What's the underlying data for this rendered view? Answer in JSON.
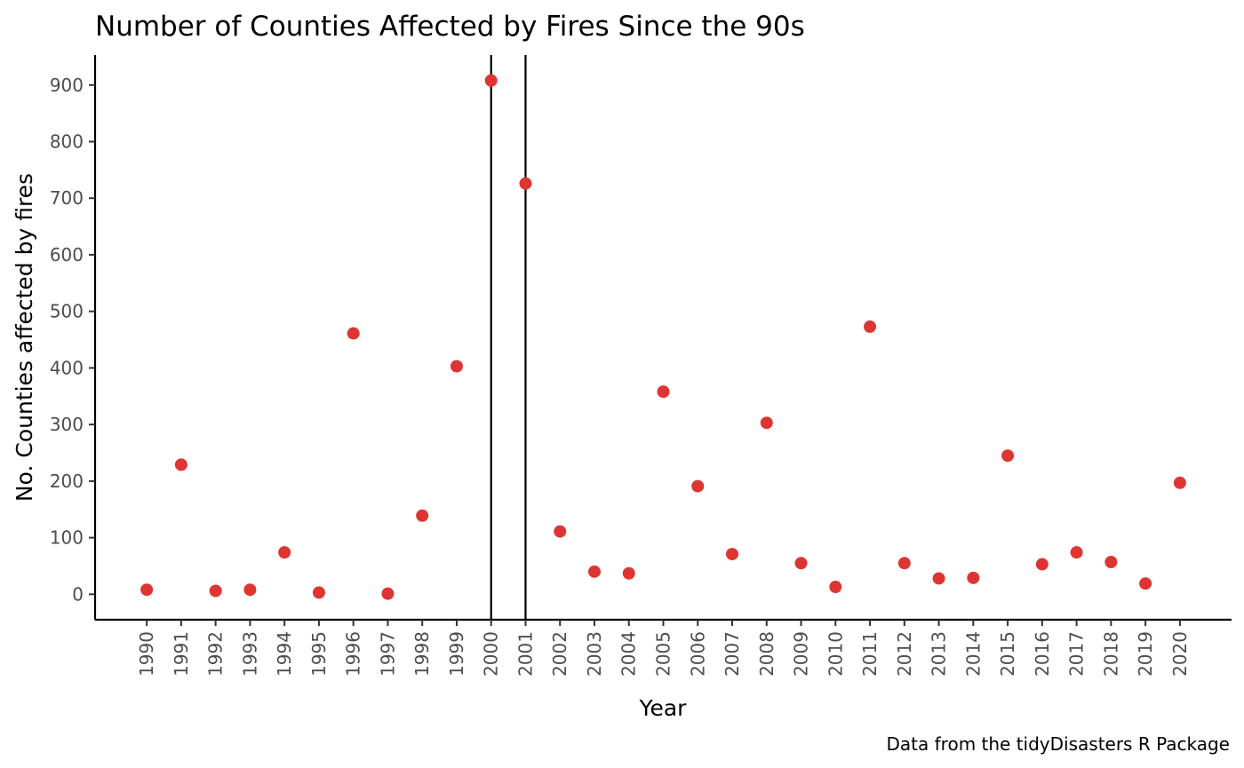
{
  "chart_data": {
    "type": "scatter",
    "title": "Number of Counties Affected by Fires Since the 90s",
    "xlabel": "Year",
    "ylabel": "No. Counties affected by fires",
    "caption": "Data from the tidyDisasters R Package",
    "x": [
      1990,
      1991,
      1992,
      1993,
      1994,
      1995,
      1996,
      1997,
      1998,
      1999,
      2000,
      2001,
      2002,
      2003,
      2004,
      2005,
      2006,
      2007,
      2008,
      2009,
      2010,
      2011,
      2012,
      2013,
      2014,
      2015,
      2016,
      2017,
      2018,
      2019,
      2020
    ],
    "y": [
      8,
      229,
      6,
      8,
      74,
      3,
      461,
      1,
      139,
      403,
      908,
      726,
      111,
      40,
      37,
      358,
      191,
      71,
      303,
      55,
      13,
      473,
      55,
      28,
      29,
      245,
      53,
      74,
      57,
      19,
      197
    ],
    "xticks": [
      "1990",
      "1991",
      "1992",
      "1993",
      "1994",
      "1995",
      "1996",
      "1997",
      "1998",
      "1999",
      "2000",
      "2001",
      "2002",
      "2003",
      "2004",
      "2005",
      "2006",
      "2007",
      "2008",
      "2009",
      "2010",
      "2011",
      "2012",
      "2013",
      "2014",
      "2015",
      "2016",
      "2017",
      "2018",
      "2019",
      "2020"
    ],
    "yticks": [
      0,
      100,
      200,
      300,
      400,
      500,
      600,
      700,
      800,
      900
    ],
    "ylim": [
      -45,
      953
    ],
    "xlim": [
      1988.5,
      2021.5
    ],
    "vlines": [
      2000,
      2001
    ],
    "point_color": "#de3533",
    "line_color": "#000000",
    "grid": false
  }
}
